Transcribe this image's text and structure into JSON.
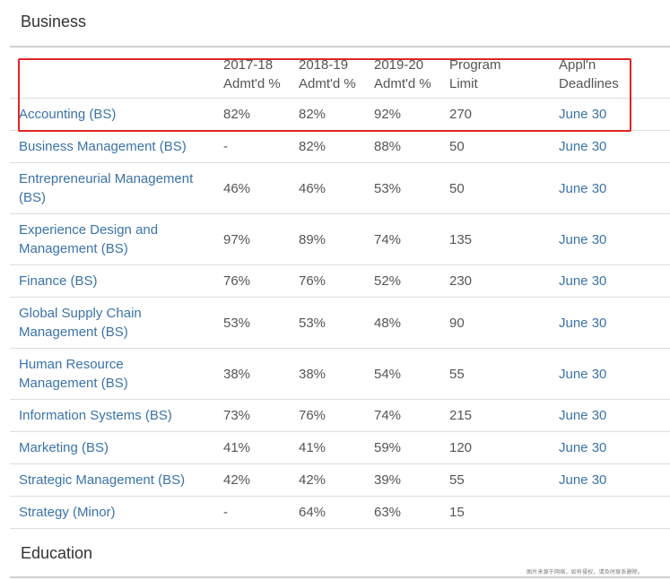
{
  "sections": {
    "business_title": "Business",
    "education_title": "Education"
  },
  "table": {
    "headers": {
      "name": "",
      "y2017": [
        "2017-18",
        "Admt'd %"
      ],
      "y2018": [
        "2018-19",
        "Admt'd %"
      ],
      "y2019": [
        "2019-20",
        "Admt'd %"
      ],
      "limit": [
        "Program",
        "Limit"
      ],
      "deadline": [
        "Appl'n",
        "Deadlines"
      ]
    },
    "rows": [
      {
        "name": "Accounting (BS)",
        "y2017": "82%",
        "y2018": "82%",
        "y2019": "92%",
        "limit": "270",
        "deadline": "June 30"
      },
      {
        "name": "Business Management (BS)",
        "y2017": "-",
        "y2018": "82%",
        "y2019": "88%",
        "limit": "50",
        "deadline": "June 30"
      },
      {
        "name": "Entrepreneurial Management (BS)",
        "y2017": "46%",
        "y2018": "46%",
        "y2019": "53%",
        "limit": "50",
        "deadline": "June 30"
      },
      {
        "name": "Experience Design and Management (BS)",
        "y2017": "97%",
        "y2018": "89%",
        "y2019": "74%",
        "limit": "135",
        "deadline": "June 30"
      },
      {
        "name": "Finance (BS)",
        "y2017": "76%",
        "y2018": "76%",
        "y2019": "52%",
        "limit": "230",
        "deadline": "June 30"
      },
      {
        "name": "Global Supply Chain Management (BS)",
        "y2017": "53%",
        "y2018": "53%",
        "y2019": "48%",
        "limit": "90",
        "deadline": "June 30"
      },
      {
        "name": "Human Resource Management (BS)",
        "y2017": "38%",
        "y2018": "38%",
        "y2019": "54%",
        "limit": "55",
        "deadline": "June 30"
      },
      {
        "name": "Information Systems (BS)",
        "y2017": "73%",
        "y2018": "76%",
        "y2019": "74%",
        "limit": "215",
        "deadline": "June 30"
      },
      {
        "name": "Marketing (BS)",
        "y2017": "41%",
        "y2018": "41%",
        "y2019": "59%",
        "limit": "120",
        "deadline": "June 30"
      },
      {
        "name": "Strategic Management (BS)",
        "y2017": "42%",
        "y2018": "42%",
        "y2019": "39%",
        "limit": "55",
        "deadline": "June 30"
      },
      {
        "name": "Strategy (Minor)",
        "y2017": "-",
        "y2018": "64%",
        "y2019": "63%",
        "limit": "15",
        "deadline": ""
      }
    ]
  },
  "watermark": "图片来源于网络，如有侵权，请及时联系删除。",
  "colors": {
    "link": "#3b73a8",
    "highlight": "#e02424",
    "text": "#555555"
  }
}
